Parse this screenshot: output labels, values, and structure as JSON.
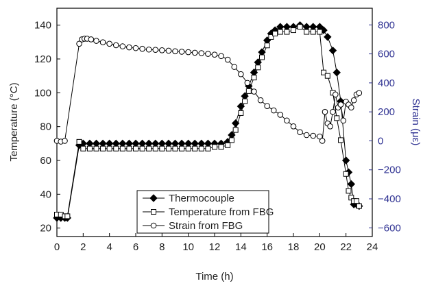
{
  "chart_data": {
    "type": "line",
    "x_label": "Time (h)",
    "y_label": "Temperature (°C)",
    "y2_label": "Strain (με)",
    "xlim": [
      0,
      24
    ],
    "xticks": [
      0,
      2,
      4,
      6,
      8,
      10,
      12,
      14,
      16,
      18,
      20,
      22,
      24
    ],
    "ylim": [
      15,
      150
    ],
    "yticks": [
      20,
      40,
      60,
      80,
      100,
      120,
      140
    ],
    "y2lim": [
      -660,
      915
    ],
    "y2ticks": [
      {
        "value": -600,
        "label": "−600"
      },
      {
        "value": -400,
        "label": "−400"
      },
      {
        "value": -200,
        "label": "−200"
      },
      0,
      200,
      400,
      600,
      800
    ],
    "y2_color": "#2e3192",
    "legend": "bottom-center",
    "series": [
      {
        "name": "Thermocouple",
        "marker": "diamond-filled",
        "color": "#000000",
        "x": [
          0,
          0.3,
          0.6,
          0.8,
          1.7,
          2,
          2.5,
          3,
          3.5,
          4,
          4.5,
          5,
          5.5,
          6,
          6.5,
          7,
          7.5,
          8,
          8.5,
          9,
          9.5,
          10,
          10.5,
          11,
          11.5,
          12,
          12.5,
          13,
          13.3,
          13.6,
          14,
          14.3,
          14.6,
          15,
          15.3,
          15.6,
          16,
          16.3,
          16.6,
          17,
          17.5,
          18,
          18.5,
          19,
          19.5,
          20,
          20.3,
          20.6,
          21,
          21.3,
          21.6,
          22,
          22.2,
          22.4,
          22.6,
          22.8,
          23
        ],
        "values": [
          26,
          26,
          26,
          26,
          69,
          70,
          70,
          70,
          70,
          70,
          70,
          70,
          70,
          70,
          70,
          70,
          70,
          70,
          70,
          70,
          70,
          70,
          70,
          70,
          70,
          70,
          70,
          71,
          75,
          82,
          92,
          98,
          104,
          112,
          118,
          124,
          131,
          135,
          137,
          139,
          139,
          139,
          140,
          139,
          139,
          139,
          137,
          133,
          125,
          112,
          95,
          60,
          53,
          46,
          34,
          34,
          33
        ]
      },
      {
        "name": "Temperature from FBG",
        "marker": "square-open",
        "color": "#000000",
        "x": [
          0,
          0.3,
          0.6,
          0.8,
          1.7,
          2,
          2.5,
          3,
          3.5,
          4,
          4.5,
          5,
          5.5,
          6,
          6.5,
          7,
          7.5,
          8,
          8.5,
          9,
          9.5,
          10,
          10.5,
          11,
          11.5,
          12,
          12.5,
          13,
          13.3,
          13.6,
          14,
          14.3,
          14.6,
          15,
          15.3,
          15.6,
          16,
          16.3,
          16.6,
          17,
          17.5,
          18,
          18.5,
          19,
          19.5,
          20,
          20.3,
          20.6,
          21,
          21.3,
          21.6,
          22,
          22.2,
          22.4,
          22.6,
          22.8,
          23
        ],
        "values": [
          28,
          28,
          27,
          27,
          71,
          67,
          67,
          67,
          67,
          67,
          67,
          67,
          67,
          67,
          67,
          67,
          67,
          67,
          67,
          67,
          67,
          67,
          67,
          67,
          67,
          68,
          68,
          69,
          72,
          78,
          88,
          95,
          101,
          109,
          115,
          121,
          128,
          133,
          135,
          136,
          136,
          137,
          139,
          136,
          136,
          136,
          112,
          110,
          100,
          85,
          72,
          52,
          42,
          38,
          36,
          36,
          33
        ]
      },
      {
        "name": "Strain from FBG",
        "marker": "circle-open",
        "color": "#000000",
        "axis": "y2",
        "x": [
          0,
          0.3,
          0.6,
          1.7,
          1.9,
          2.1,
          2.3,
          2.6,
          3,
          3.5,
          4,
          4.5,
          5,
          5.5,
          6,
          6.5,
          7,
          7.5,
          8,
          8.5,
          9,
          9.5,
          10,
          10.5,
          11,
          11.5,
          12,
          12.5,
          13,
          13.5,
          14,
          14.5,
          15,
          15.5,
          16,
          16.5,
          17,
          17.5,
          18,
          18.5,
          19,
          19.5,
          20,
          20.2,
          20.4,
          20.6,
          20.8,
          21,
          21.2,
          21.4,
          21.6,
          21.8,
          22,
          22.2,
          22.4,
          22.6,
          22.8,
          23
        ],
        "values": [
          0,
          -5,
          0,
          670,
          700,
          705,
          705,
          700,
          690,
          680,
          670,
          660,
          652,
          645,
          640,
          635,
          630,
          628,
          625,
          622,
          618,
          615,
          612,
          608,
          605,
          600,
          595,
          585,
          560,
          510,
          460,
          400,
          340,
          280,
          240,
          210,
          180,
          140,
          100,
          60,
          40,
          35,
          30,
          0,
          200,
          120,
          100,
          200,
          320,
          230,
          250,
          140,
          270,
          250,
          230,
          280,
          320,
          330
        ]
      }
    ]
  }
}
